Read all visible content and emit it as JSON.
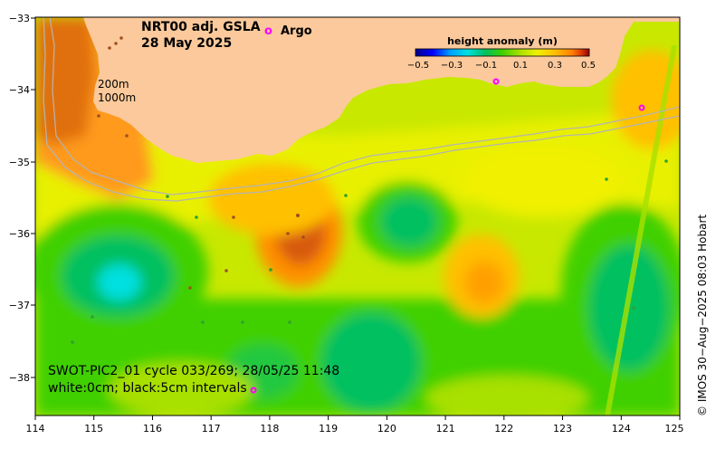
{
  "map": {
    "title_line1": "NRT00 adj. GSLA",
    "title_line2": "28 May 2025",
    "argo_symbol": "o",
    "argo_label": "Argo",
    "isobath_labels": [
      "200m",
      "1000m"
    ],
    "colorbar": {
      "title": "height anomaly (m)",
      "ticks": [
        "−0.5",
        "−0.3",
        "−0.1",
        "0.1",
        "0.3",
        "0.5"
      ],
      "vmin": -0.5,
      "vmax": 0.5,
      "stops": [
        "#00008b",
        "#0000ff",
        "#00a0ff",
        "#00e0e0",
        "#00c060",
        "#40d000",
        "#a8e000",
        "#f0f000",
        "#ffc000",
        "#ff8000",
        "#e04000",
        "#900000"
      ]
    },
    "x_axis_ticks": [
      "114",
      "115",
      "116",
      "117",
      "118",
      "119",
      "120",
      "121",
      "122",
      "123",
      "124",
      "125"
    ],
    "y_axis_ticks": [
      "−33",
      "−34",
      "−35",
      "−36",
      "−37",
      "−38"
    ],
    "swot_line1": "SWOT-PIC2_01 cycle 033/269; 28/05/25 11:48",
    "swot_line2": "white:0cm; black:5cm intervals",
    "copyright": "© IMOS 30−Aug−2025 08:03 Hobart",
    "colors": {
      "land": "#fbc99b",
      "argo_marker": "#ff00ff",
      "isobath": "#b4b4b4"
    }
  }
}
